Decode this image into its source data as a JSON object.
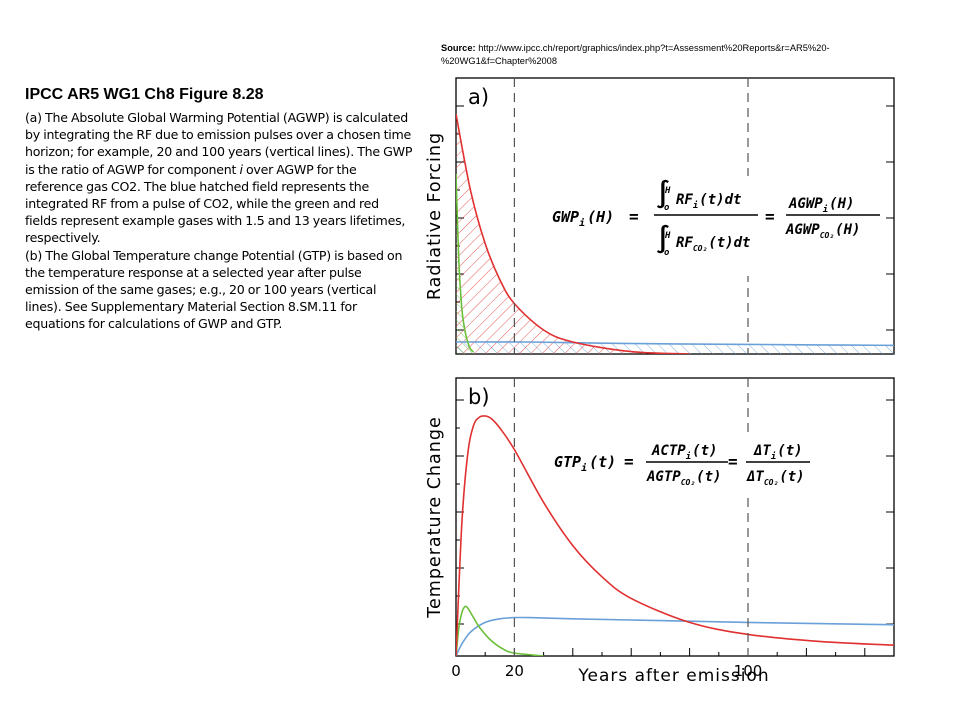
{
  "source": {
    "label": "Source:",
    "url": "http://www.ipcc.ch/report/graphics/index.php?t=Assessment%20Reports&r=AR5%20-%20WG1&f=Chapter%2008"
  },
  "caption": {
    "title": "IPCC AR5 WG1 Ch8 Figure 8.28",
    "body_a1": "(a) The Absolute Global Warming Potential (AGWP) is calculated by integrating the RF due to emission pulses over a chosen time horizon; for example, 20 and 100 years (vertical lines). The GWP is the ratio of AGWP for component ",
    "italic_i": "i",
    "body_a2": " over AGWP for the reference gas CO2. The blue hatched field represents the integrated RF from a pulse of CO2, while the green and red fields represent example gases with 1.5 and 13 years lifetimes, respectively.",
    "body_b": "(b) The Global Temperature change Potential (GTP) is based on the temperature response at a selected year after pulse emission of the same gases; e.g., 20 or 100 years (vertical lines). See Supplementary Material Section 8.SM.11 for equations for calculations of GWP and GTP."
  },
  "colors": {
    "co2": "#6aa0d8",
    "short_lived": "#6cbf3a",
    "medium_lived": "#e03030",
    "axis": "#000000",
    "marker_line": "#666666"
  },
  "chart_data": [
    {
      "type": "area",
      "panel_label": "a)",
      "ylabel": "Radiative Forcing",
      "xlim": [
        0,
        150
      ],
      "vertical_lines": [
        20,
        100
      ],
      "series": [
        {
          "name": "CO2",
          "color": "blue",
          "x": [
            0,
            25,
            50,
            75,
            100,
            125,
            150
          ],
          "y": [
            0.05,
            0.05,
            0.045,
            0.042,
            0.04,
            0.038,
            0.036
          ]
        },
        {
          "name": "1.5 years lifetime",
          "color": "green",
          "x": [
            0,
            1,
            2,
            3,
            4,
            5,
            6
          ],
          "y": [
            0.75,
            0.38,
            0.19,
            0.1,
            0.05,
            0.02,
            0.01
          ]
        },
        {
          "name": "13 years lifetime",
          "color": "red",
          "x": [
            0,
            5,
            10,
            15,
            20,
            30,
            40,
            60,
            80
          ],
          "y": [
            1.0,
            0.68,
            0.46,
            0.31,
            0.21,
            0.1,
            0.05,
            0.01,
            0.0
          ]
        }
      ],
      "equation": {
        "lhs": "GWP",
        "lhs_sub": "i",
        "lhs_arg": "(H)",
        "integrand_num": "RF",
        "integrand_num_sub": "i",
        "integrand_den": "RF",
        "integrand_den_sub": "CO₂",
        "arg": "(t)dt",
        "lower": "o",
        "upper": "H",
        "rhs_num": "AGWP",
        "rhs_num_sub": "i",
        "rhs_den": "AGWP",
        "rhs_den_sub": "CO₂",
        "rhs_arg": "(H)",
        "eq": "="
      }
    },
    {
      "type": "line",
      "panel_label": "b)",
      "ylabel": "Temperature Change",
      "xlabel": "Years after emission",
      "xticks": [
        "0",
        "20",
        "100"
      ],
      "xlim": [
        0,
        150
      ],
      "vertical_lines": [
        20,
        100
      ],
      "series": [
        {
          "name": "CO2",
          "color": "blue",
          "x": [
            0,
            2,
            5,
            10,
            15,
            20,
            25,
            40,
            60,
            100,
            150
          ],
          "y": [
            0,
            0.05,
            0.1,
            0.14,
            0.155,
            0.16,
            0.16,
            0.155,
            0.15,
            0.14,
            0.13
          ]
        },
        {
          "name": "1.5 years lifetime",
          "color": "green",
          "x": [
            0,
            1,
            2,
            3,
            4,
            6,
            8,
            12,
            16,
            20,
            30
          ],
          "y": [
            0,
            0.12,
            0.18,
            0.205,
            0.2,
            0.16,
            0.12,
            0.065,
            0.03,
            0.012,
            0
          ]
        },
        {
          "name": "13 years lifetime",
          "color": "red",
          "x": [
            0,
            2,
            4,
            6,
            8,
            10,
            12,
            15,
            20,
            30,
            40,
            50,
            60,
            80,
            100,
            125,
            150
          ],
          "y": [
            0,
            0.55,
            0.84,
            0.96,
            0.995,
            1.0,
            0.99,
            0.95,
            0.86,
            0.64,
            0.46,
            0.33,
            0.24,
            0.14,
            0.09,
            0.06,
            0.045
          ]
        }
      ],
      "equation": {
        "lhs": "GTP",
        "lhs_sub": "i",
        "lhs_arg": "(t)",
        "mid_num": "ACTP",
        "mid_num_sub": "i",
        "mid_den": "AGTP",
        "mid_den_sub": "CO₂",
        "mid_arg": "(t)",
        "rhs_num": "ΔT",
        "rhs_num_sub": "i",
        "rhs_den": "ΔT",
        "rhs_den_sub": "CO₂",
        "rhs_arg": "(t)",
        "eq": "="
      }
    }
  ]
}
